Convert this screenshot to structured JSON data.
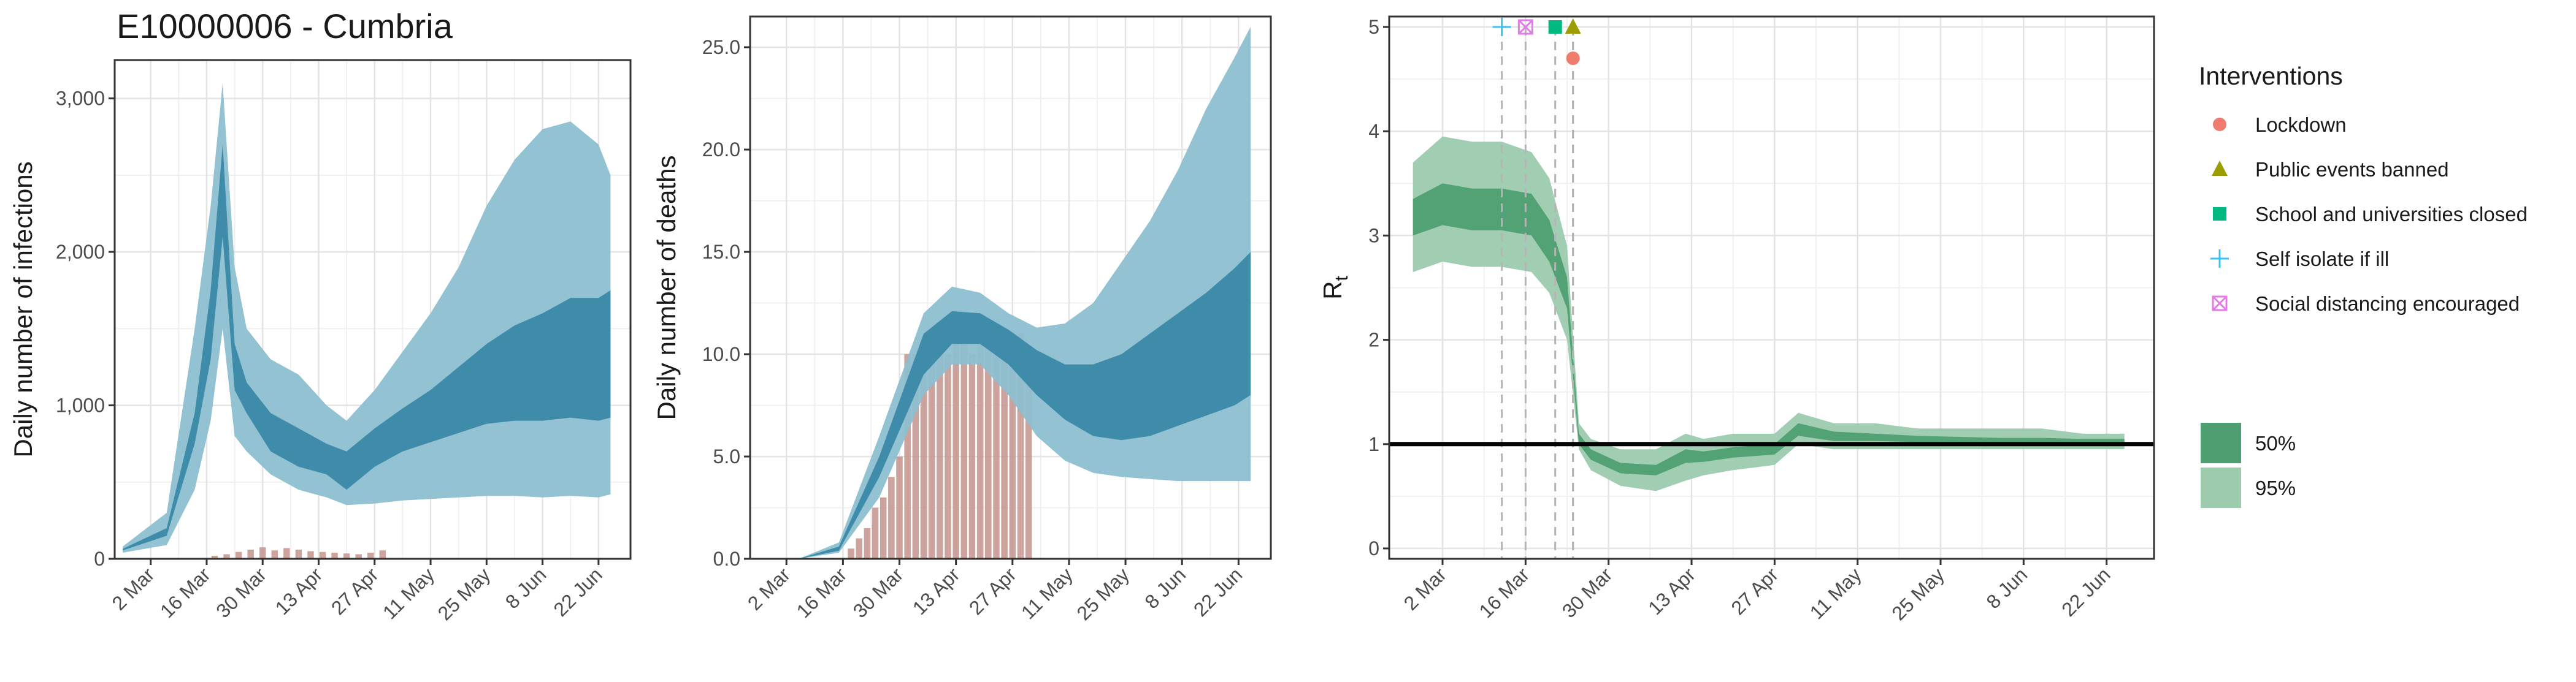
{
  "title": "E10000006 - Cumbria",
  "colors": {
    "blue_dark": "#3a89a8",
    "blue_light": "#8dbfd0",
    "blue_line": "#2e7fa0",
    "bar": "#c4938c",
    "green_dark": "#4f9f72",
    "green_light": "#9ccbae",
    "lockdown": "#f07c70",
    "public_events": "#9c9e00",
    "schools": "#00b882",
    "self_isolate": "#3fc2f0",
    "social_distancing": "#e47ae7"
  },
  "x_tick_labels": [
    "2 Mar",
    "16 Mar",
    "30 Mar",
    "13 Apr",
    "27 Apr",
    "11 May",
    "25 May",
    "8 Jun",
    "22 Jun"
  ],
  "chart_data": [
    {
      "type": "area",
      "name": "infections",
      "title": "E10000006 - Cumbria",
      "xlabel": "",
      "ylabel": "Daily number of infections",
      "xlim": [
        "2020-02-22",
        "2020-06-30"
      ],
      "ylim": [
        0,
        3250
      ],
      "y_ticks": [
        0,
        1000,
        2000,
        3000
      ],
      "y_tick_labels": [
        "0",
        "1,000",
        "2,000",
        "3,000"
      ],
      "grid": true,
      "band_dates": [
        "2020-02-24",
        "2020-03-06",
        "2020-03-13",
        "2020-03-17",
        "2020-03-20",
        "2020-03-23",
        "2020-03-26",
        "2020-04-01",
        "2020-04-08",
        "2020-04-15",
        "2020-04-20",
        "2020-04-27",
        "2020-05-04",
        "2020-05-11",
        "2020-05-18",
        "2020-05-25",
        "2020-06-01",
        "2020-06-08",
        "2020-06-15",
        "2020-06-22",
        "2020-06-25"
      ],
      "band95_low": [
        40,
        90,
        450,
        900,
        1500,
        800,
        700,
        550,
        450,
        400,
        350,
        360,
        380,
        390,
        400,
        410,
        410,
        400,
        410,
        400,
        420
      ],
      "band95_high": [
        80,
        300,
        1500,
        2300,
        3100,
        1900,
        1500,
        1300,
        1200,
        1000,
        900,
        1100,
        1350,
        1600,
        1900,
        2300,
        2600,
        2800,
        2850,
        2700,
        2500
      ],
      "band50_low": [
        55,
        150,
        750,
        1300,
        2100,
        1100,
        950,
        700,
        600,
        550,
        450,
        600,
        700,
        760,
        820,
        880,
        900,
        900,
        920,
        900,
        920
      ],
      "band50_high": [
        65,
        200,
        950,
        1750,
        2700,
        1400,
        1150,
        950,
        850,
        750,
        700,
        850,
        980,
        1100,
        1250,
        1400,
        1520,
        1600,
        1700,
        1700,
        1750
      ],
      "bars_dates": [
        "2020-03-18",
        "2020-03-21",
        "2020-03-24",
        "2020-03-27",
        "2020-03-30",
        "2020-04-02",
        "2020-04-05",
        "2020-04-08",
        "2020-04-11",
        "2020-04-14",
        "2020-04-17",
        "2020-04-20",
        "2020-04-23",
        "2020-04-26",
        "2020-04-29"
      ],
      "bars_values": [
        20,
        30,
        45,
        60,
        75,
        55,
        70,
        60,
        50,
        45,
        40,
        35,
        30,
        40,
        55
      ]
    },
    {
      "type": "area",
      "name": "deaths",
      "xlabel": "",
      "ylabel": "Daily number of deaths",
      "xlim": [
        "2020-02-22",
        "2020-06-30"
      ],
      "ylim": [
        0,
        26.5
      ],
      "y_ticks": [
        0,
        5,
        10,
        15,
        20,
        25
      ],
      "y_tick_labels": [
        "0.0",
        "5.0",
        "10.0",
        "15.0",
        "20.0",
        "25.0"
      ],
      "grid": true,
      "band_dates": [
        "2020-02-24",
        "2020-03-05",
        "2020-03-15",
        "2020-03-25",
        "2020-04-05",
        "2020-04-12",
        "2020-04-19",
        "2020-04-26",
        "2020-05-03",
        "2020-05-10",
        "2020-05-17",
        "2020-05-24",
        "2020-05-31",
        "2020-06-07",
        "2020-06-14",
        "2020-06-21",
        "2020-06-25"
      ],
      "band95_low": [
        0,
        0,
        0.3,
        3,
        8,
        9.5,
        9.5,
        8,
        6,
        4.8,
        4.2,
        4,
        3.9,
        3.8,
        3.8,
        3.8,
        3.8
      ],
      "band95_high": [
        0,
        0,
        0.8,
        6,
        12,
        13.3,
        13,
        12,
        11.3,
        11.5,
        12.5,
        14.5,
        16.5,
        19,
        22,
        24.5,
        26
      ],
      "band50_low": [
        0,
        0,
        0.4,
        4,
        9,
        10.5,
        10.5,
        9.5,
        8,
        6.8,
        6,
        5.8,
        6,
        6.5,
        7,
        7.5,
        8
      ],
      "band50_high": [
        0,
        0,
        0.6,
        5,
        11,
        12.1,
        12,
        11.2,
        10.2,
        9.5,
        9.5,
        10,
        11,
        12,
        13,
        14.2,
        15
      ],
      "bars_dates": [
        "2020-03-18",
        "2020-03-20",
        "2020-03-22",
        "2020-03-24",
        "2020-03-26",
        "2020-03-28",
        "2020-03-30",
        "2020-04-01",
        "2020-04-03",
        "2020-04-05",
        "2020-04-07",
        "2020-04-09",
        "2020-04-11",
        "2020-04-13",
        "2020-04-15",
        "2020-04-17",
        "2020-04-19",
        "2020-04-21",
        "2020-04-23",
        "2020-04-25",
        "2020-04-27",
        "2020-04-29",
        "2020-05-01"
      ],
      "bars_values": [
        0.5,
        1,
        1.5,
        2.5,
        3,
        4,
        5,
        10,
        10,
        10,
        10,
        11,
        10,
        11,
        12,
        10,
        12,
        11,
        10,
        11,
        10,
        11,
        10
      ]
    },
    {
      "type": "line",
      "name": "rt",
      "xlabel": "",
      "ylabel": "R",
      "ylabel_subscript": "t",
      "xlim": [
        "2020-02-22",
        "2020-06-30"
      ],
      "ylim": [
        -0.1,
        5.1
      ],
      "y_ticks": [
        0,
        1,
        2,
        3,
        4,
        5
      ],
      "y_tick_labels": [
        "0",
        "1",
        "2",
        "3",
        "4",
        "5"
      ],
      "grid": true,
      "reference_line": 1,
      "band_dates": [
        "2020-02-26",
        "2020-03-02",
        "2020-03-07",
        "2020-03-12",
        "2020-03-17",
        "2020-03-20",
        "2020-03-23",
        "2020-03-25",
        "2020-03-27",
        "2020-04-01",
        "2020-04-07",
        "2020-04-12",
        "2020-04-15",
        "2020-04-20",
        "2020-04-27",
        "2020-05-01",
        "2020-05-07",
        "2020-05-14",
        "2020-05-21",
        "2020-05-28",
        "2020-06-04",
        "2020-06-11",
        "2020-06-18",
        "2020-06-25"
      ],
      "band95_low": [
        2.65,
        2.75,
        2.7,
        2.7,
        2.65,
        2.45,
        2.0,
        0.95,
        0.75,
        0.6,
        0.55,
        0.65,
        0.7,
        0.75,
        0.8,
        1.0,
        0.95,
        0.95,
        0.95,
        0.95,
        0.95,
        0.95,
        0.95,
        0.95
      ],
      "band95_high": [
        3.7,
        3.95,
        3.9,
        3.9,
        3.8,
        3.55,
        2.9,
        1.2,
        1.05,
        0.95,
        0.95,
        1.1,
        1.05,
        1.1,
        1.1,
        1.3,
        1.2,
        1.2,
        1.15,
        1.15,
        1.15,
        1.15,
        1.1,
        1.1
      ],
      "band50_low": [
        3.0,
        3.1,
        3.05,
        3.05,
        3.0,
        2.75,
        2.3,
        1.0,
        0.85,
        0.72,
        0.7,
        0.82,
        0.83,
        0.87,
        0.9,
        1.08,
        1.03,
        1.03,
        1.02,
        1.02,
        1.01,
        1.01,
        1.0,
        1.0
      ],
      "band50_high": [
        3.35,
        3.5,
        3.45,
        3.45,
        3.4,
        3.15,
        2.6,
        1.1,
        0.95,
        0.82,
        0.8,
        0.95,
        0.93,
        0.97,
        1.0,
        1.2,
        1.12,
        1.1,
        1.08,
        1.07,
        1.06,
        1.06,
        1.05,
        1.05
      ],
      "interventions": [
        {
          "label": "Self isolate if ill",
          "date": "2020-03-12",
          "y": 5,
          "marker": "plus",
          "color_key": "self_isolate"
        },
        {
          "label": "Social distancing encouraged",
          "date": "2020-03-16",
          "y": 5,
          "marker": "boxx",
          "color_key": "social_distancing"
        },
        {
          "label": "School and universities closed",
          "date": "2020-03-21",
          "y": 5,
          "marker": "square",
          "color_key": "schools"
        },
        {
          "label": "Public events banned",
          "date": "2020-03-24",
          "y": 5,
          "marker": "triangle",
          "color_key": "public_events"
        },
        {
          "label": "Lockdown",
          "date": "2020-03-24",
          "y": 4.7,
          "marker": "circle",
          "color_key": "lockdown"
        }
      ]
    }
  ],
  "legend": {
    "title": "Interventions",
    "items": [
      {
        "label": "Lockdown",
        "marker": "circle",
        "color_key": "lockdown"
      },
      {
        "label": "Public events banned",
        "marker": "triangle",
        "color_key": "public_events"
      },
      {
        "label": "School and universities closed",
        "marker": "square",
        "color_key": "schools"
      },
      {
        "label": "Self isolate if ill",
        "marker": "plus",
        "color_key": "self_isolate"
      },
      {
        "label": "Social distancing encouraged",
        "marker": "boxx",
        "color_key": "social_distancing"
      }
    ],
    "ci_items": [
      {
        "label": "50%",
        "color_key": "green_dark"
      },
      {
        "label": "95%",
        "color_key": "green_light"
      }
    ]
  }
}
